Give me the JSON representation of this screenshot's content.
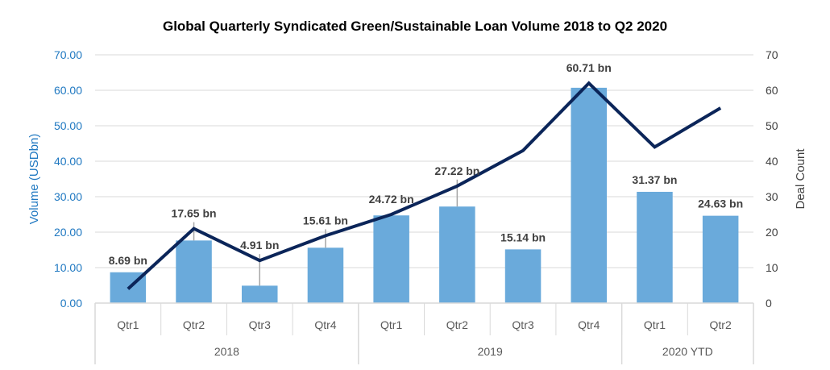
{
  "chart_data": {
    "type": "bar",
    "title": "Global Quarterly Syndicated Green/Sustainable Loan Volume 2018 to Q2 2020",
    "categories": [
      "Qtr1",
      "Qtr2",
      "Qtr3",
      "Qtr4",
      "Qtr1",
      "Qtr2",
      "Qtr3",
      "Qtr4",
      "Qtr1",
      "Qtr2"
    ],
    "groups": [
      {
        "label": "2018",
        "count": 4
      },
      {
        "label": "2019",
        "count": 4
      },
      {
        "label": "2020 YTD",
        "count": 2
      }
    ],
    "series": [
      {
        "type": "bar",
        "axis": "left",
        "values": [
          8.69,
          17.65,
          4.91,
          15.61,
          24.72,
          27.22,
          15.14,
          60.71,
          31.37,
          24.63
        ],
        "data_labels": [
          "8.69 bn",
          "17.65 bn",
          "4.91 bn",
          "15.61 bn",
          "24.72 bn",
          "27.22 bn",
          "15.14 bn",
          "60.71 bn",
          "31.37 bn",
          "24.63 bn"
        ],
        "color": "#6aaadb"
      },
      {
        "type": "line",
        "axis": "right",
        "values": [
          4,
          21,
          12,
          19,
          25,
          33,
          43,
          62,
          44,
          55
        ],
        "color": "#0b2559"
      }
    ],
    "ylabel": "Volume (USDbn)",
    "y2label": "Deal Count",
    "ylim": [
      0,
      70
    ],
    "y2lim": [
      0,
      70
    ],
    "yticks": [
      "0.00",
      "10.00",
      "20.00",
      "30.00",
      "40.00",
      "50.00",
      "60.00",
      "70.00"
    ],
    "y2ticks": [
      "0",
      "10",
      "20",
      "30",
      "40",
      "50",
      "60",
      "70"
    ],
    "grid": true,
    "legend": "none",
    "colors": {
      "left_axis_text": "#1f78c1",
      "right_axis_text": "#404040",
      "gridline": "#d9d9d9"
    }
  }
}
